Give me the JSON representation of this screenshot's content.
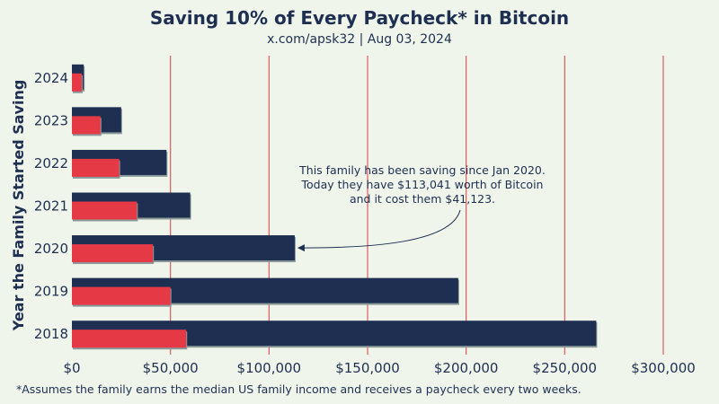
{
  "title": "Saving 10% of Every Paycheck* in Bitcoin",
  "subtitle": "x.com/apsk32 | Aug 03, 2024",
  "footnote": "*Assumes the family earns the median US family income and receives a paycheck every two weeks.",
  "colors": {
    "background": "#eff5ea",
    "value_bar": "#1e2f52",
    "cost_bar": "#e63946",
    "gridline": "#e05a5a",
    "text": "#1e2f52"
  },
  "chart_data": {
    "type": "bar",
    "orientation": "horizontal",
    "ylabel": "Year the Family Started Saving",
    "xlabel": "",
    "categories": [
      "2024",
      "2023",
      "2022",
      "2021",
      "2020",
      "2019",
      "2018"
    ],
    "series": [
      {
        "values": [
          6000,
          25000,
          48000,
          60000,
          113041,
          196000,
          266000
        ]
      },
      {
        "values": [
          5000,
          14500,
          24000,
          33000,
          41123,
          50000,
          58000
        ]
      }
    ],
    "xlim": [
      0,
      300000
    ],
    "xticks": [
      0,
      50000,
      100000,
      150000,
      200000,
      250000,
      300000
    ],
    "xtick_labels": [
      "$0",
      "$50,000",
      "$100,000",
      "$150,000",
      "$200,000",
      "$250,000",
      "$300,000"
    ],
    "grid": "vertical",
    "annotation": {
      "lines": [
        "This family has been saving since Jan 2020.",
        "Today they have $113,041 worth of Bitcoin",
        "and it cost them $41,123."
      ],
      "target_category": "2020"
    }
  }
}
